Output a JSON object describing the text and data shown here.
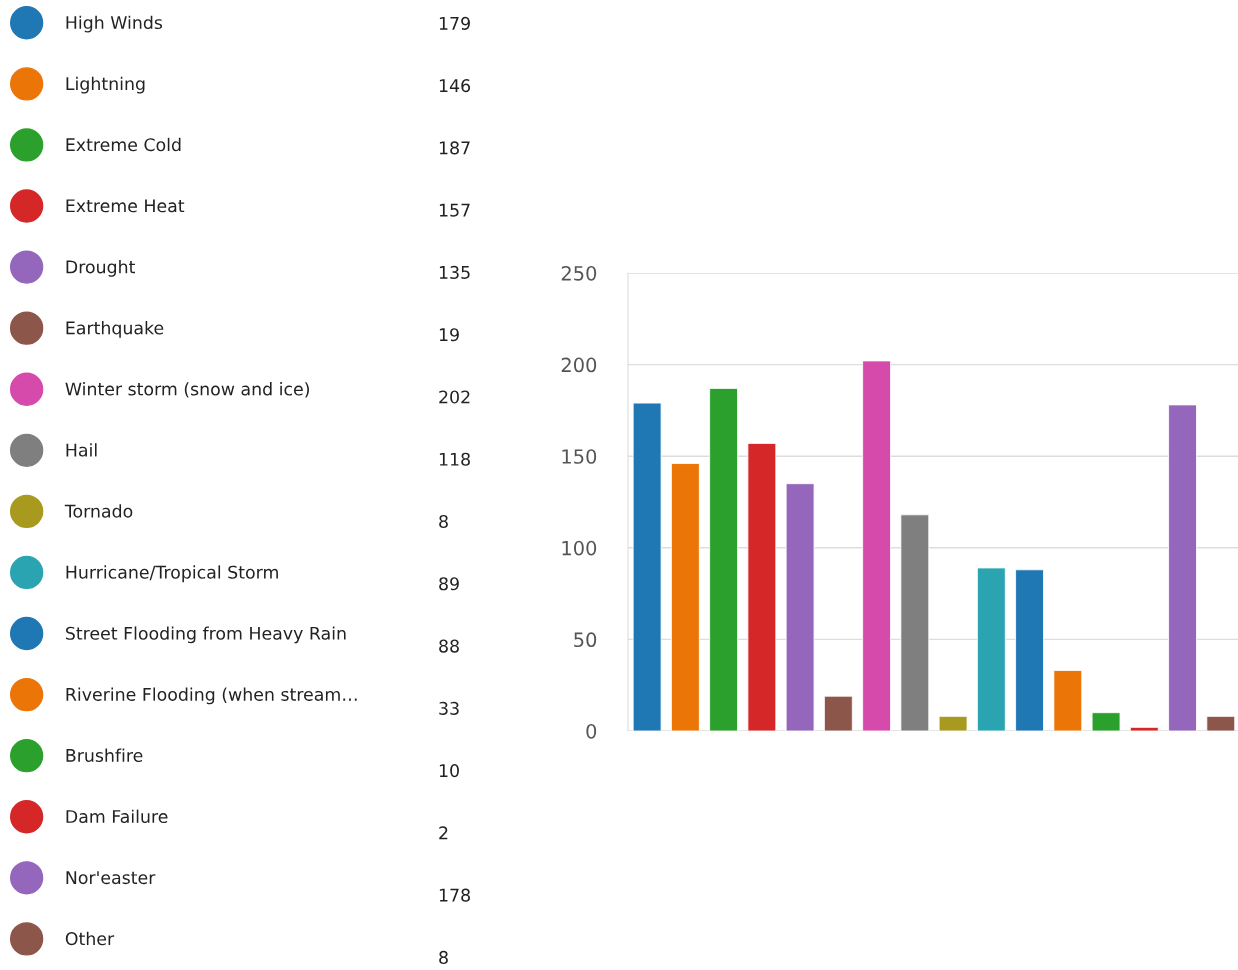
{
  "chart_data": {
    "type": "bar",
    "categories": [
      null
    ],
    "series": [
      {
        "name": "High Winds",
        "color": "#1f77b4",
        "values": [
          179
        ]
      },
      {
        "name": "Lightning",
        "color": "#ec7507",
        "values": [
          146
        ]
      },
      {
        "name": "Extreme Cold",
        "color": "#2ca02c",
        "values": [
          187
        ]
      },
      {
        "name": "Extreme Heat",
        "color": "#d62728",
        "values": [
          157
        ]
      },
      {
        "name": "Drought",
        "color": "#9467bd",
        "values": [
          135
        ]
      },
      {
        "name": "Earthquake",
        "color": "#8c564b",
        "values": [
          19
        ]
      },
      {
        "name": "Winter storm (snow and ice)",
        "color": "#d54aab",
        "values": [
          202
        ]
      },
      {
        "name": "Hail",
        "color": "#7f7f7f",
        "values": [
          118
        ]
      },
      {
        "name": "Tornado",
        "color": "#a89a1e",
        "values": [
          8
        ]
      },
      {
        "name": "Hurricane/Tropical Storm",
        "color": "#2aa4b0",
        "values": [
          89
        ]
      },
      {
        "name": "Street Flooding from Heavy Rain",
        "color": "#1f77b4",
        "values": [
          88
        ]
      },
      {
        "name": "Riverine Flooding (when stream…",
        "color": "#ec7507",
        "values": [
          33
        ]
      },
      {
        "name": "Brushfire",
        "color": "#2ca02c",
        "values": [
          10
        ]
      },
      {
        "name": "Dam Failure",
        "color": "#d62728",
        "values": [
          2
        ]
      },
      {
        "name": "Nor'easter",
        "color": "#9467bd",
        "values": [
          178
        ]
      },
      {
        "name": "Other",
        "color": "#8c564b",
        "values": [
          8
        ]
      }
    ],
    "ylim": [
      0,
      250
    ],
    "yticks": [
      0,
      50,
      100,
      150,
      200,
      250
    ],
    "value_labels": [
      "179",
      "146",
      "187",
      "157",
      "135",
      "19",
      "202",
      "118",
      "8",
      "89",
      "88",
      "33",
      "10",
      "2",
      "178",
      "8"
    ],
    "grid": "y",
    "legend": "left"
  }
}
